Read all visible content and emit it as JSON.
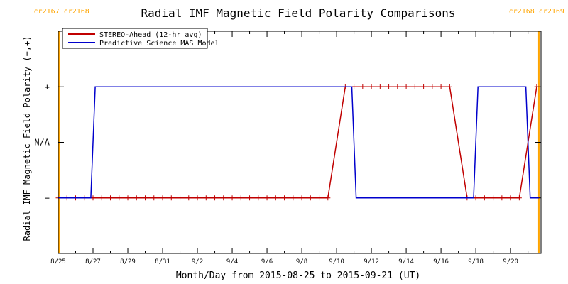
{
  "chart_data": {
    "type": "line",
    "title": "Radial IMF Magnetic Field Polarity Comparisons",
    "xlabel": "Month/Day from 2015-08-25 to 2015-09-21 (UT)",
    "ylabel": "Radial IMF Magnetic Field Polarity (−,+)",
    "xlim": [
      "2015-08-25T00:00",
      "2015-09-21T18:00"
    ],
    "y_categories": [
      "−",
      "N/A",
      "+"
    ],
    "ylim": [
      -2,
      2
    ],
    "x_ticks": [
      "8/25",
      "8/27",
      "8/29",
      "8/31",
      "9/2",
      "9/4",
      "9/6",
      "9/8",
      "9/10",
      "9/12",
      "9/14",
      "9/16",
      "9/18",
      "9/20"
    ],
    "carrington_rotations": [
      {
        "labels": [
          "cr2167",
          "cr2168"
        ],
        "date": "2015-08-25T01:30",
        "color": "#ffa500"
      },
      {
        "labels": [
          "cr2168",
          "cr2169"
        ],
        "date": "2015-09-21T15:00",
        "color": "#ffa500"
      }
    ],
    "legend_position": "top-left",
    "series": [
      {
        "name": "STEREO-Ahead (12-hr avg)",
        "color": "#c00000",
        "marker": "+",
        "points": [
          [
            "2015-08-25T00:00",
            -1
          ],
          [
            "2015-08-25T12:00",
            -1
          ],
          [
            "2015-08-26T00:00",
            -1
          ],
          [
            "2015-08-26T12:00",
            -1
          ],
          [
            "2015-08-27T00:00",
            -1
          ],
          [
            "2015-08-27T12:00",
            -1
          ],
          [
            "2015-08-28T00:00",
            -1
          ],
          [
            "2015-08-28T12:00",
            -1
          ],
          [
            "2015-08-29T00:00",
            -1
          ],
          [
            "2015-08-29T12:00",
            -1
          ],
          [
            "2015-08-30T00:00",
            -1
          ],
          [
            "2015-08-30T12:00",
            -1
          ],
          [
            "2015-08-31T00:00",
            -1
          ],
          [
            "2015-08-31T12:00",
            -1
          ],
          [
            "2015-09-01T00:00",
            -1
          ],
          [
            "2015-09-01T12:00",
            -1
          ],
          [
            "2015-09-02T00:00",
            -1
          ],
          [
            "2015-09-02T12:00",
            -1
          ],
          [
            "2015-09-03T00:00",
            -1
          ],
          [
            "2015-09-03T12:00",
            -1
          ],
          [
            "2015-09-04T00:00",
            -1
          ],
          [
            "2015-09-04T12:00",
            -1
          ],
          [
            "2015-09-05T00:00",
            -1
          ],
          [
            "2015-09-05T12:00",
            -1
          ],
          [
            "2015-09-06T00:00",
            -1
          ],
          [
            "2015-09-06T12:00",
            -1
          ],
          [
            "2015-09-07T00:00",
            -1
          ],
          [
            "2015-09-07T12:00",
            -1
          ],
          [
            "2015-09-08T00:00",
            -1
          ],
          [
            "2015-09-08T12:00",
            -1
          ],
          [
            "2015-09-09T00:00",
            -1
          ],
          [
            "2015-09-09T12:00",
            -1
          ],
          [
            "2015-09-10T12:00",
            1
          ],
          [
            "2015-09-11T00:00",
            1
          ],
          [
            "2015-09-11T12:00",
            1
          ],
          [
            "2015-09-12T00:00",
            1
          ],
          [
            "2015-09-12T12:00",
            1
          ],
          [
            "2015-09-13T00:00",
            1
          ],
          [
            "2015-09-13T12:00",
            1
          ],
          [
            "2015-09-14T00:00",
            1
          ],
          [
            "2015-09-14T12:00",
            1
          ],
          [
            "2015-09-15T00:00",
            1
          ],
          [
            "2015-09-15T12:00",
            1
          ],
          [
            "2015-09-16T00:00",
            1
          ],
          [
            "2015-09-16T12:00",
            1
          ],
          [
            "2015-09-17T12:00",
            -1
          ],
          [
            "2015-09-18T00:00",
            -1
          ],
          [
            "2015-09-18T12:00",
            -1
          ],
          [
            "2015-09-19T00:00",
            -1
          ],
          [
            "2015-09-19T12:00",
            -1
          ],
          [
            "2015-09-20T00:00",
            -1
          ],
          [
            "2015-09-20T12:00",
            -1
          ],
          [
            "2015-09-21T12:00",
            1
          ]
        ]
      },
      {
        "name": "Predictive Science MAS Model",
        "color": "#0000cc",
        "marker": "none",
        "points": [
          [
            "2015-08-25T00:00",
            -1
          ],
          [
            "2015-08-26T21:00",
            -1
          ],
          [
            "2015-08-27T03:00",
            1
          ],
          [
            "2015-09-10T09:00",
            1
          ],
          [
            "2015-09-10T21:00",
            1
          ],
          [
            "2015-09-11T03:00",
            -1
          ],
          [
            "2015-09-17T21:00",
            -1
          ],
          [
            "2015-09-18T03:00",
            1
          ],
          [
            "2015-09-20T21:00",
            1
          ],
          [
            "2015-09-21T03:00",
            -1
          ],
          [
            "2015-09-21T15:00",
            -1
          ]
        ]
      }
    ]
  }
}
